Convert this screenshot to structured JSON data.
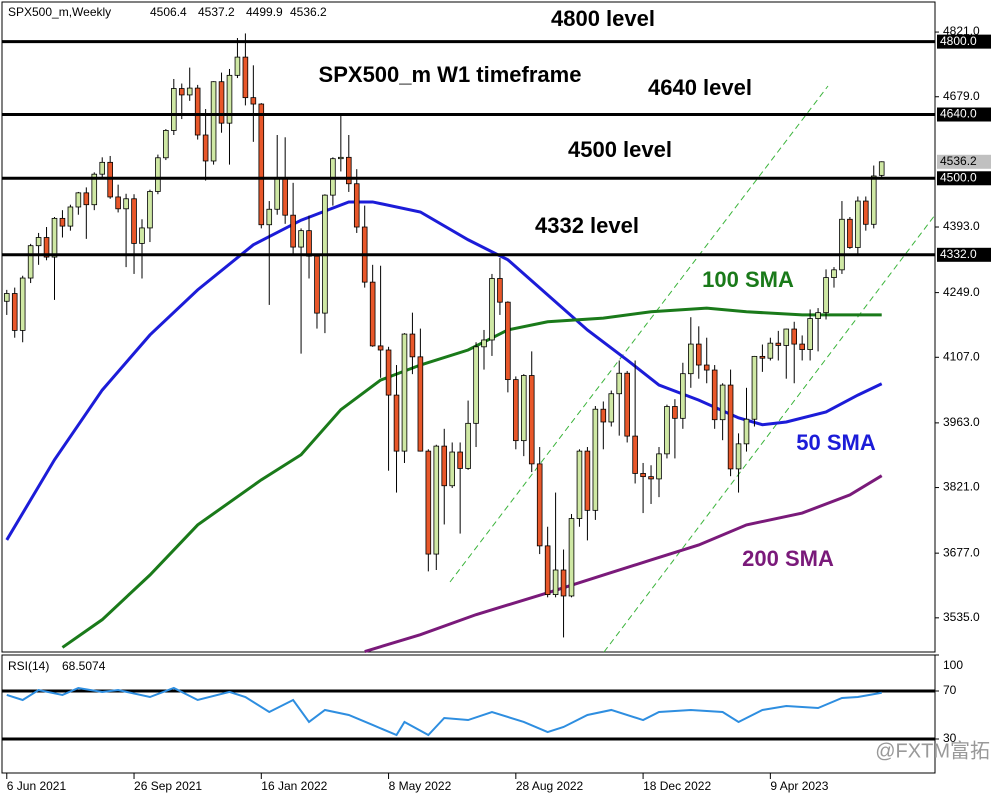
{
  "chart_data": {
    "type": "candlestick",
    "title": "SPX500_m,Weekly",
    "annotation": "SPX500_m W1 timeframe",
    "watermark": "@FXTM富拓",
    "bull_color": "#cfe8a4",
    "bear_color": "#e8572a",
    "ylim": [
      3460,
      4887
    ],
    "yticks": [
      {
        "value": 4821,
        "label": "4821.0"
      },
      {
        "value": 4679,
        "label": "4679.0"
      },
      {
        "value": 4393,
        "label": "4393.0"
      },
      {
        "value": 4249,
        "label": "4249.0"
      },
      {
        "value": 4107,
        "label": "4107.0"
      },
      {
        "value": 3963,
        "label": "3963.0"
      },
      {
        "value": 3821,
        "label": "3821.0"
      },
      {
        "value": 3677,
        "label": "3677.0"
      },
      {
        "value": 3535,
        "label": "3535.0"
      }
    ],
    "xlim": [
      -0.6,
      116.7
    ],
    "xticks": [
      {
        "value": 0,
        "label": "6 Jun 2021"
      },
      {
        "value": 16,
        "label": "26 Sep 2021"
      },
      {
        "value": 32,
        "label": "16 Jan 2022"
      },
      {
        "value": 48,
        "label": "8 May 2022"
      },
      {
        "value": 64,
        "label": "28 Aug 2022"
      },
      {
        "value": 80,
        "label": "18 Dec 2022"
      },
      {
        "value": 96,
        "label": "9 Apr 2023"
      }
    ],
    "levels": [
      {
        "value": 4800,
        "label": "4800.0",
        "text": "4800 level"
      },
      {
        "value": 4640,
        "label": "4640.0",
        "text": "4640 level"
      },
      {
        "value": 4500,
        "label": "4500.0",
        "text": "4500 level"
      },
      {
        "value": 4332,
        "label": "4332.0",
        "text": "4332 level"
      }
    ],
    "candles": [
      [
        4230,
        4255,
        4200,
        4247
      ],
      [
        4247,
        4260,
        4150,
        4166
      ],
      [
        4166,
        4286,
        4140,
        4281
      ],
      [
        4281,
        4356,
        4270,
        4352
      ],
      [
        4352,
        4380,
        4310,
        4370
      ],
      [
        4370,
        4393,
        4320,
        4327
      ],
      [
        4327,
        4415,
        4233,
        4412
      ],
      [
        4412,
        4430,
        4370,
        4395
      ],
      [
        4395,
        4442,
        4385,
        4437
      ],
      [
        4437,
        4470,
        4420,
        4468
      ],
      [
        4468,
        4480,
        4367,
        4442
      ],
      [
        4442,
        4513,
        4430,
        4509
      ],
      [
        4509,
        4546,
        4500,
        4535
      ],
      [
        4535,
        4549,
        4455,
        4459
      ],
      [
        4459,
        4486,
        4425,
        4433
      ],
      [
        4433,
        4466,
        4305,
        4455
      ],
      [
        4455,
        4465,
        4290,
        4357
      ],
      [
        4357,
        4410,
        4280,
        4391
      ],
      [
        4391,
        4475,
        4360,
        4471
      ],
      [
        4471,
        4552,
        4465,
        4545
      ],
      [
        4545,
        4608,
        4540,
        4605
      ],
      [
        4605,
        4718,
        4595,
        4697
      ],
      [
        4697,
        4708,
        4630,
        4683
      ],
      [
        4683,
        4743,
        4670,
        4698
      ],
      [
        4698,
        4705,
        4585,
        4595
      ],
      [
        4595,
        4652,
        4495,
        4538
      ],
      [
        4538,
        4713,
        4530,
        4712
      ],
      [
        4712,
        4732,
        4600,
        4621
      ],
      [
        4621,
        4740,
        4530,
        4726
      ],
      [
        4726,
        4808,
        4720,
        4766
      ],
      [
        4766,
        4818,
        4660,
        4677
      ],
      [
        4677,
        4748,
        4580,
        4663
      ],
      [
        4663,
        4665,
        4390,
        4398
      ],
      [
        4398,
        4450,
        4222,
        4432
      ],
      [
        4432,
        4595,
        4420,
        4501
      ],
      [
        4501,
        4590,
        4400,
        4419
      ],
      [
        4419,
        4490,
        4330,
        4349
      ],
      [
        4349,
        4390,
        4115,
        4385
      ],
      [
        4385,
        4418,
        4280,
        4329
      ],
      [
        4329,
        4330,
        4170,
        4204
      ],
      [
        4204,
        4465,
        4160,
        4463
      ],
      [
        4463,
        4546,
        4440,
        4543
      ],
      [
        4543,
        4638,
        4515,
        4546
      ],
      [
        4546,
        4595,
        4470,
        4488
      ],
      [
        4488,
        4520,
        4380,
        4393
      ],
      [
        4393,
        4440,
        4260,
        4272
      ],
      [
        4272,
        4310,
        4130,
        4132
      ],
      [
        4132,
        4308,
        4062,
        4123
      ],
      [
        4123,
        4130,
        3858,
        4024
      ],
      [
        4024,
        4090,
        3810,
        3901
      ],
      [
        3901,
        4160,
        3875,
        4158
      ],
      [
        4158,
        4205,
        4070,
        4108
      ],
      [
        4108,
        4170,
        3900,
        3901
      ],
      [
        3901,
        3905,
        3637,
        3675
      ],
      [
        3675,
        3915,
        3640,
        3912
      ],
      [
        3912,
        3950,
        3740,
        3825
      ],
      [
        3825,
        3920,
        3820,
        3899
      ],
      [
        3899,
        3920,
        3720,
        3863
      ],
      [
        3863,
        4012,
        3860,
        3962
      ],
      [
        3962,
        4140,
        3910,
        4130
      ],
      [
        4130,
        4167,
        4080,
        4145
      ],
      [
        4145,
        4290,
        4110,
        4280
      ],
      [
        4280,
        4325,
        4200,
        4228
      ],
      [
        4228,
        4230,
        4030,
        4058
      ],
      [
        4058,
        4065,
        3905,
        3924
      ],
      [
        3924,
        4070,
        3890,
        4067
      ],
      [
        4067,
        4120,
        3855,
        3873
      ],
      [
        3873,
        3910,
        3675,
        3693
      ],
      [
        3693,
        3735,
        3580,
        3586
      ],
      [
        3586,
        3810,
        3580,
        3640
      ],
      [
        3640,
        3685,
        3492,
        3583
      ],
      [
        3583,
        3763,
        3580,
        3753
      ],
      [
        3753,
        3905,
        3735,
        3901
      ],
      [
        3901,
        3910,
        3705,
        3771
      ],
      [
        3771,
        4000,
        3750,
        3993
      ],
      [
        3993,
        4010,
        3905,
        3965
      ],
      [
        3965,
        4034,
        3955,
        4027
      ],
      [
        4027,
        4100,
        3935,
        4072
      ],
      [
        4072,
        4077,
        3920,
        3934
      ],
      [
        3934,
        4100,
        3830,
        3852
      ],
      [
        3852,
        3875,
        3765,
        3845
      ],
      [
        3845,
        3870,
        3785,
        3840
      ],
      [
        3840,
        3910,
        3800,
        3895
      ],
      [
        3895,
        4003,
        3885,
        3999
      ],
      [
        3999,
        4015,
        3885,
        3973
      ],
      [
        3973,
        4095,
        3950,
        4071
      ],
      [
        4071,
        4195,
        4040,
        4136
      ],
      [
        4136,
        4175,
        4060,
        4090
      ],
      [
        4090,
        4150,
        4050,
        4079
      ],
      [
        4079,
        4090,
        3950,
        3970
      ],
      [
        3970,
        4050,
        3925,
        4046
      ],
      [
        4046,
        4080,
        3846,
        3862
      ],
      [
        3862,
        3940,
        3810,
        3917
      ],
      [
        3917,
        4040,
        3900,
        3971
      ],
      [
        3971,
        4110,
        3955,
        4109
      ],
      [
        4109,
        4135,
        4075,
        4105
      ],
      [
        4105,
        4150,
        4100,
        4138
      ],
      [
        4138,
        4165,
        4100,
        4133
      ],
      [
        4133,
        4170,
        4060,
        4169
      ],
      [
        4169,
        4185,
        4050,
        4136
      ],
      [
        4136,
        4155,
        4100,
        4124
      ],
      [
        4124,
        4212,
        4100,
        4192
      ],
      [
        4192,
        4215,
        4120,
        4205
      ],
      [
        4205,
        4300,
        4190,
        4282
      ],
      [
        4282,
        4305,
        4260,
        4299
      ],
      [
        4299,
        4450,
        4290,
        4410
      ],
      [
        4410,
        4415,
        4345,
        4348
      ],
      [
        4348,
        4460,
        4330,
        4450
      ],
      [
        4450,
        4460,
        4385,
        4399
      ],
      [
        4399,
        4528,
        4390,
        4505
      ],
      [
        4506.4,
        4537.2,
        4499.9,
        4536.2
      ]
    ],
    "series": [
      {
        "name": "50 SMA",
        "color": "#1c1cd8",
        "x": [
          0,
          6,
          12,
          18,
          24,
          31,
          37,
          43,
          46,
          52,
          58,
          63,
          68,
          73,
          78,
          82,
          87,
          92,
          95,
          98,
          103,
          107,
          110
        ],
        "values": [
          3706,
          3882,
          4035,
          4156,
          4255,
          4354,
          4408,
          4448,
          4448,
          4426,
          4365,
          4321,
          4244,
          4167,
          4101,
          4046,
          4013,
          3974,
          3959,
          3965,
          3987,
          4024,
          4049
        ]
      },
      {
        "name": "100 SMA",
        "color": "#1a7a1a",
        "x": [
          7,
          12,
          18,
          24,
          32,
          37,
          42,
          47,
          52,
          58,
          63,
          68,
          75,
          81,
          88,
          93,
          100,
          106,
          110
        ],
        "values": [
          3470,
          3531,
          3629,
          3739,
          3838,
          3893,
          3992,
          4057,
          4090,
          4123,
          4167,
          4185,
          4193,
          4207,
          4215,
          4207,
          4200,
          4200,
          4200
        ]
      },
      {
        "name": "200 SMA",
        "color": "#7a1a7a",
        "x": [
          45,
          52,
          59,
          68,
          75,
          81,
          87,
          93,
          100,
          106,
          110
        ],
        "values": [
          3461,
          3498,
          3542,
          3590,
          3629,
          3662,
          3695,
          3739,
          3765,
          3805,
          3847
        ]
      }
    ],
    "rsi": {
      "name": "RSI(14)",
      "color": "#2e8ee0",
      "ylim": [
        0,
        100
      ],
      "yticks": [
        100,
        70,
        30
      ],
      "levels": [
        70,
        30
      ],
      "x": [
        0,
        2,
        4,
        7,
        9,
        12,
        14,
        18,
        21,
        24,
        28,
        30,
        33,
        36,
        38,
        40,
        43,
        46,
        49,
        50,
        53,
        55,
        58,
        61,
        65,
        68,
        70,
        73,
        76,
        80,
        82,
        86,
        90,
        92,
        95,
        98,
        102,
        105,
        107,
        110
      ],
      "values": [
        66.7,
        62.5,
        70.8,
        66.7,
        72.5,
        69.2,
        70.8,
        65,
        72.5,
        62.5,
        69.2,
        65,
        52.5,
        62.5,
        44.2,
        54.2,
        50,
        41.7,
        33.3,
        44.2,
        33.3,
        47.5,
        45.8,
        52.5,
        44.2,
        35.8,
        40,
        50,
        54.2,
        45.8,
        52.5,
        54.2,
        52.5,
        44.2,
        54.2,
        57.5,
        55.8,
        64.2,
        65,
        68.5074
      ]
    }
  }
}
